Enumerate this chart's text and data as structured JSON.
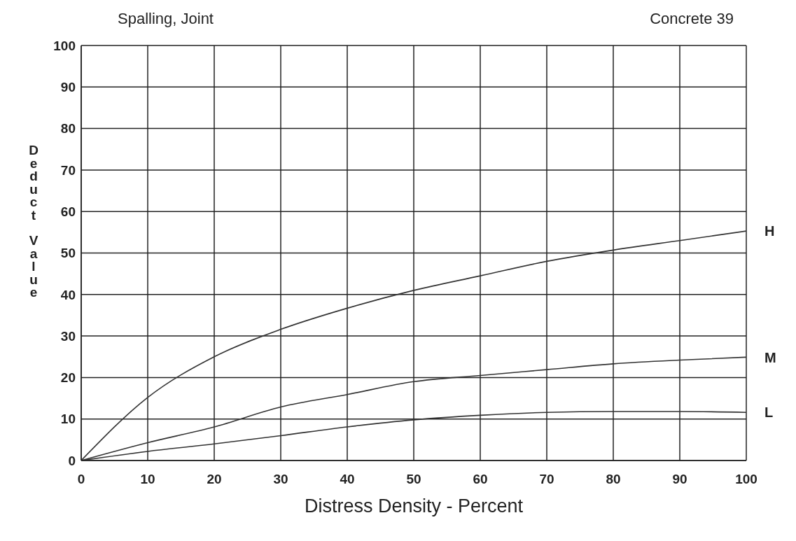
{
  "chart_data": {
    "type": "line",
    "title": "Spalling, Joint",
    "subtitle": "Concrete 39",
    "xlabel": "Distress Density - Percent",
    "ylabel": "Deduct Value",
    "x": [
      0,
      10,
      20,
      30,
      40,
      50,
      60,
      70,
      80,
      90,
      100
    ],
    "series": [
      {
        "name": "H",
        "color": "#333333",
        "values": [
          0,
          15.2,
          25,
          31.6,
          36.7,
          41,
          44.5,
          48,
          50.7,
          53,
          55.3
        ]
      },
      {
        "name": "M",
        "color": "#333333",
        "values": [
          0,
          4.3,
          8.1,
          12.9,
          15.9,
          19,
          20.5,
          21.9,
          23.3,
          24.2,
          24.9
        ]
      },
      {
        "name": "L",
        "color": "#333333",
        "values": [
          0,
          2.2,
          4,
          6,
          8.1,
          9.8,
          10.9,
          11.6,
          11.8,
          11.8,
          11.6
        ]
      }
    ],
    "xlim": [
      0,
      100
    ],
    "xticks": [
      0,
      10,
      20,
      30,
      40,
      50,
      60,
      70,
      80,
      90,
      100
    ],
    "ylim": [
      0,
      100
    ],
    "yticks": [
      0,
      10,
      20,
      30,
      40,
      50,
      60,
      70,
      80,
      90,
      100
    ],
    "grid": true,
    "legend": false
  }
}
